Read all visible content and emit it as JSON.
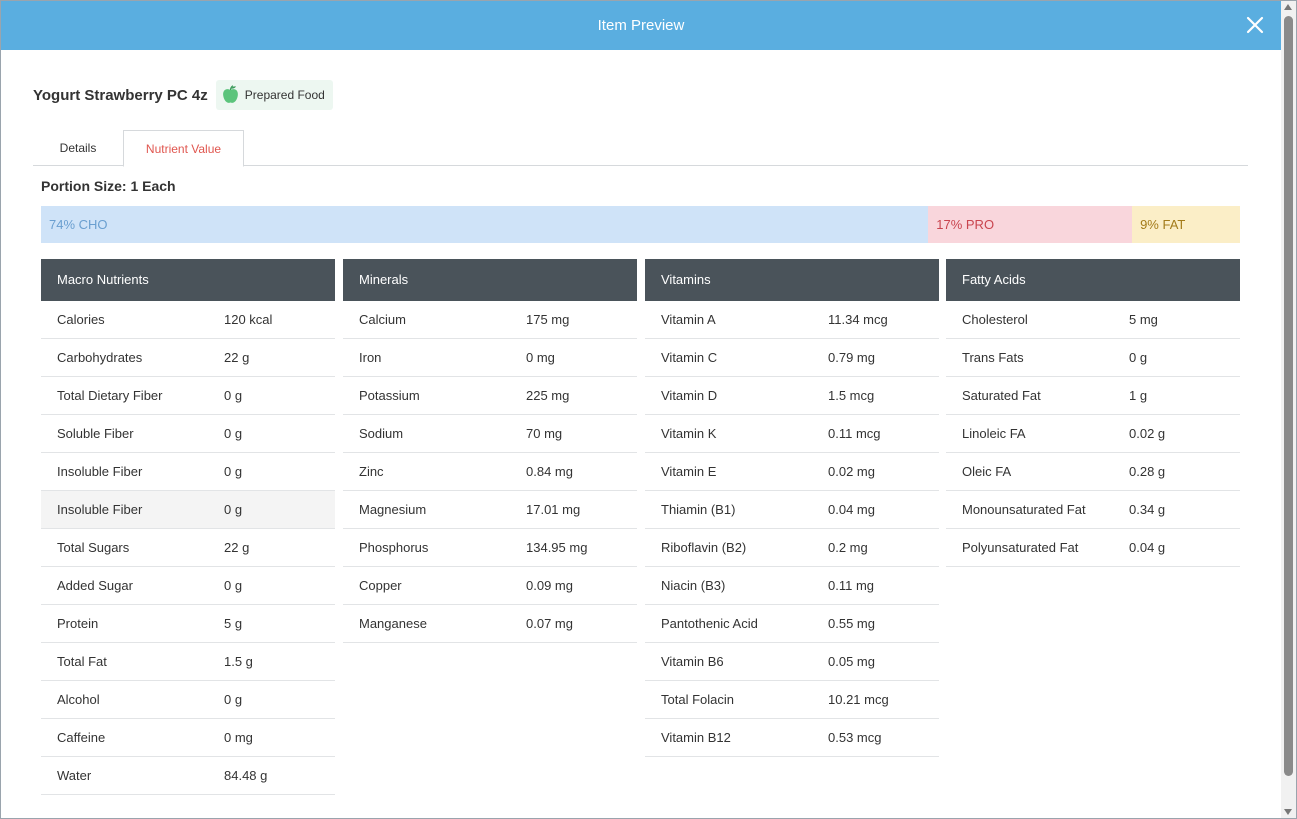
{
  "window": {
    "title": "Item Preview"
  },
  "item": {
    "name": "Yogurt Strawberry PC 4z",
    "category": "Prepared Food",
    "category_icon": "apple-icon"
  },
  "tabs": [
    {
      "label": "Details",
      "active": false
    },
    {
      "label": "Nutrient Value",
      "active": true
    }
  ],
  "portion": "Portion Size: 1 Each",
  "macro_split": [
    {
      "label": "74% CHO",
      "percent": 74,
      "color": "#cfe3f8"
    },
    {
      "label": "17% PRO",
      "percent": 17,
      "color": "#f9d6dc"
    },
    {
      "label": "9% FAT",
      "percent": 9,
      "color": "#fbeec7"
    }
  ],
  "tables": [
    {
      "title": "Macro Nutrients",
      "rows": [
        {
          "name": "Calories",
          "value": "120 kcal"
        },
        {
          "name": "Carbohydrates",
          "value": "22 g"
        },
        {
          "name": "Total Dietary Fiber",
          "value": "0 g"
        },
        {
          "name": "Soluble Fiber",
          "value": "0 g"
        },
        {
          "name": "Insoluble Fiber",
          "value": "0 g"
        },
        {
          "name": "Insoluble Fiber",
          "value": "0 g",
          "highlighted": true
        },
        {
          "name": "Total Sugars",
          "value": "22 g"
        },
        {
          "name": "Added Sugar",
          "value": "0 g"
        },
        {
          "name": "Protein",
          "value": "5 g"
        },
        {
          "name": "Total Fat",
          "value": "1.5 g"
        },
        {
          "name": "Alcohol",
          "value": "0 g"
        },
        {
          "name": "Caffeine",
          "value": "0 mg"
        },
        {
          "name": "Water",
          "value": "84.48 g"
        }
      ]
    },
    {
      "title": "Minerals",
      "rows": [
        {
          "name": "Calcium",
          "value": "175 mg"
        },
        {
          "name": "Iron",
          "value": "0 mg"
        },
        {
          "name": "Potassium",
          "value": "225 mg"
        },
        {
          "name": "Sodium",
          "value": "70 mg"
        },
        {
          "name": "Zinc",
          "value": "0.84 mg"
        },
        {
          "name": "Magnesium",
          "value": "17.01 mg"
        },
        {
          "name": "Phosphorus",
          "value": "134.95 mg"
        },
        {
          "name": "Copper",
          "value": "0.09 mg"
        },
        {
          "name": "Manganese",
          "value": "0.07 mg"
        }
      ]
    },
    {
      "title": "Vitamins",
      "rows": [
        {
          "name": "Vitamin A",
          "value": "11.34 mcg"
        },
        {
          "name": "Vitamin C",
          "value": "0.79 mg"
        },
        {
          "name": "Vitamin D",
          "value": "1.5 mcg"
        },
        {
          "name": "Vitamin K",
          "value": "0.11 mcg"
        },
        {
          "name": "Vitamin E",
          "value": "0.02 mg"
        },
        {
          "name": "Thiamin (B1)",
          "value": "0.04 mg"
        },
        {
          "name": "Riboflavin (B2)",
          "value": "0.2 mg"
        },
        {
          "name": "Niacin (B3)",
          "value": "0.11 mg"
        },
        {
          "name": "Pantothenic Acid",
          "value": "0.55 mg"
        },
        {
          "name": "Vitamin B6",
          "value": "0.05 mg"
        },
        {
          "name": "Total Folacin",
          "value": "10.21 mcg"
        },
        {
          "name": "Vitamin B12",
          "value": "0.53 mcg"
        }
      ]
    },
    {
      "title": "Fatty Acids",
      "rows": [
        {
          "name": "Cholesterol",
          "value": "5 mg"
        },
        {
          "name": "Trans Fats",
          "value": "0 g"
        },
        {
          "name": "Saturated Fat",
          "value": "1 g"
        },
        {
          "name": "Linoleic FA",
          "value": "0.02 g"
        },
        {
          "name": "Oleic FA",
          "value": "0.28 g"
        },
        {
          "name": "Monounsaturated Fat",
          "value": "0.34 g"
        },
        {
          "name": "Polyunsaturated Fat",
          "value": "0.04 g"
        }
      ]
    }
  ],
  "colors": {
    "titlebar": "#5aaee0",
    "table_header": "#4a535a",
    "active_tab": "#e0564f",
    "badge_bg": "#edf7f1"
  }
}
